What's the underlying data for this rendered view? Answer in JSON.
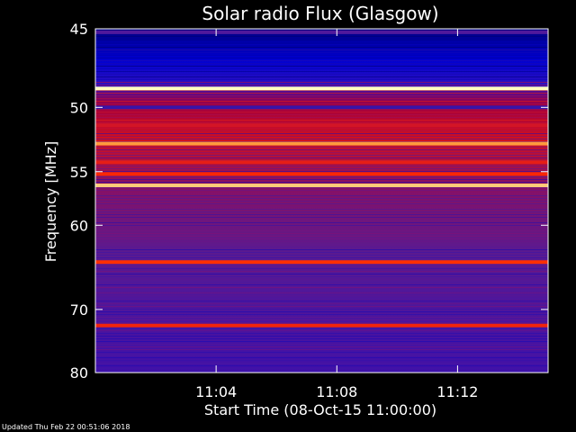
{
  "chart_data": {
    "type": "heatmap",
    "title": "Solar radio Flux (Glasgow)",
    "xlabel": "Start Time (08-Oct-15 11:00:00)",
    "ylabel": "Frequency [MHz]",
    "x_ticks": [
      "11:04",
      "11:08",
      "11:12"
    ],
    "y_ticks": [
      "45",
      "50",
      "55",
      "60",
      "70",
      "80"
    ],
    "x_range_minutes": [
      11.0,
      11.25
    ],
    "y_range_mhz": [
      45,
      80
    ],
    "y_scale": "reciprocal",
    "colormap": [
      "#000040",
      "#0000c0",
      "#4a1aa0",
      "#8a1070",
      "#c81030",
      "#ff2a00",
      "#ffa040",
      "#ffffc0"
    ],
    "bands": [
      {
        "mhz": 45.2,
        "level": 0.3
      },
      {
        "mhz": 48.7,
        "level": 1.0
      },
      {
        "mhz": 50.0,
        "level": 0.25
      },
      {
        "mhz": 51.3,
        "level": 0.6
      },
      {
        "mhz": 52.7,
        "level": 0.85
      },
      {
        "mhz": 54.2,
        "level": 0.65
      },
      {
        "mhz": 55.2,
        "level": 0.7
      },
      {
        "mhz": 56.2,
        "level": 0.92
      },
      {
        "mhz": 64.0,
        "level": 0.72
      },
      {
        "mhz": 72.3,
        "level": 0.68
      }
    ],
    "grid": false,
    "legend": "none"
  },
  "footer": {
    "updated": "Updated Thu Feb 22 00:51:06 2018"
  }
}
